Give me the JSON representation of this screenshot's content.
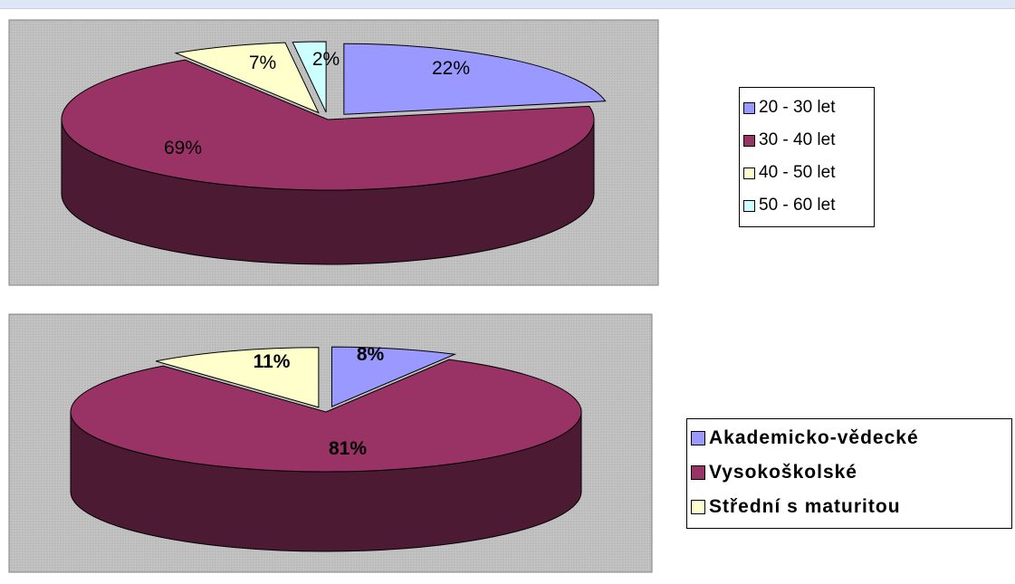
{
  "colors": {
    "plot_area": "#c0c0c0",
    "slice_blue": "#9999ff",
    "slice_maroon": "#993366",
    "slice_yellow": "#ffffcc",
    "slice_cyan": "#ccffff"
  },
  "chart_data": [
    {
      "type": "pie",
      "style": "3d-exploded",
      "title": "",
      "categories": [
        "20 - 30 let",
        "30 - 40 let",
        "40 - 50 let",
        "50 - 60 let"
      ],
      "values": [
        22,
        69,
        7,
        2
      ],
      "labels": [
        "22%",
        "69%",
        "7%",
        "2%"
      ],
      "colors": [
        "#9999ff",
        "#993366",
        "#ffffcc",
        "#ccffff"
      ],
      "legend": "right"
    },
    {
      "type": "pie",
      "style": "3d-exploded",
      "title": "",
      "categories": [
        "Akademicko-vědecké",
        "Vysokoškolské",
        "Střední s maturitou"
      ],
      "values": [
        8,
        81,
        11
      ],
      "labels": [
        "8%",
        "81%",
        "11%"
      ],
      "colors": [
        "#9999ff",
        "#993366",
        "#ffffcc"
      ],
      "legend": "right"
    }
  ]
}
